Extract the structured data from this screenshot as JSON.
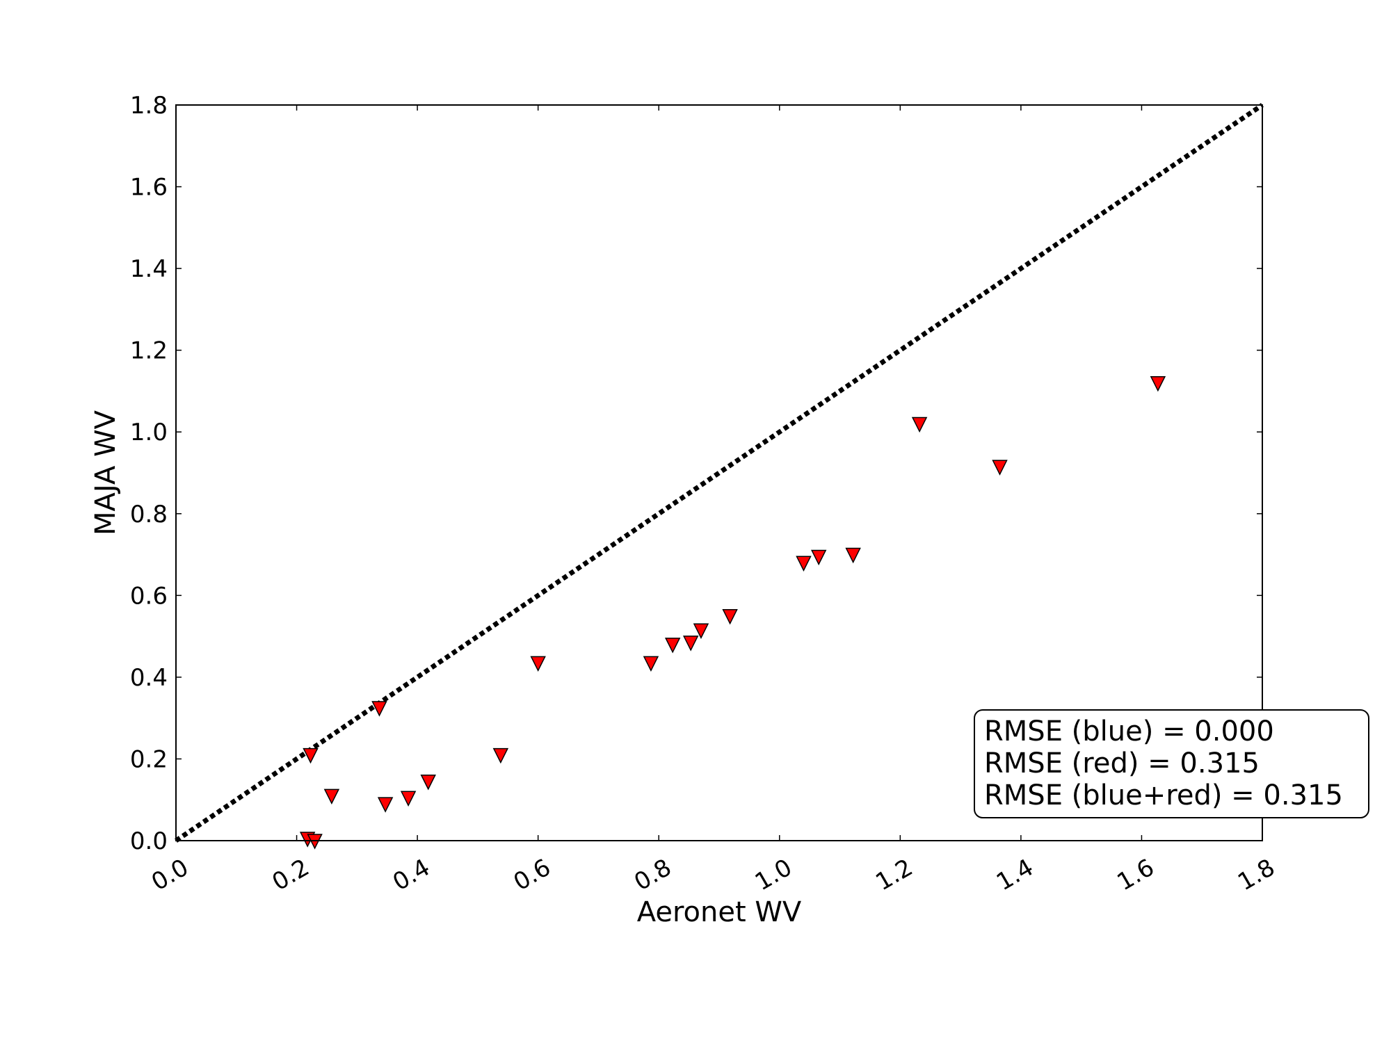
{
  "chart_data": {
    "type": "scatter",
    "xlabel": "Aeronet WV",
    "ylabel": "MAJA WV",
    "xlim": [
      0.0,
      1.8
    ],
    "ylim": [
      0.0,
      1.8
    ],
    "xticks": [
      "0.0",
      "0.2",
      "0.4",
      "0.6",
      "0.8",
      "1.0",
      "1.2",
      "1.4",
      "1.6",
      "1.8"
    ],
    "yticks": [
      "0.0",
      "0.2",
      "0.4",
      "0.6",
      "0.8",
      "1.0",
      "1.2",
      "1.4",
      "1.6",
      "1.8"
    ],
    "grid": false,
    "reference_line": {
      "style": "dotted",
      "color": "#000000",
      "from": [
        0.0,
        0.0
      ],
      "to": [
        1.8,
        1.8
      ]
    },
    "series": [
      {
        "marker": "triangle-down",
        "color": "#ff0000",
        "points": [
          [
            0.218,
            0.005
          ],
          [
            0.223,
            0.21
          ],
          [
            0.23,
            0.0
          ],
          [
            0.258,
            0.11
          ],
          [
            0.337,
            0.325
          ],
          [
            0.347,
            0.09
          ],
          [
            0.385,
            0.105
          ],
          [
            0.418,
            0.145
          ],
          [
            0.538,
            0.21
          ],
          [
            0.6,
            0.435
          ],
          [
            0.787,
            0.435
          ],
          [
            0.823,
            0.48
          ],
          [
            0.853,
            0.485
          ],
          [
            0.87,
            0.515
          ],
          [
            0.918,
            0.55
          ],
          [
            1.04,
            0.68
          ],
          [
            1.065,
            0.695
          ],
          [
            1.122,
            0.7
          ],
          [
            1.232,
            1.02
          ],
          [
            1.365,
            0.915
          ],
          [
            1.627,
            1.12
          ]
        ]
      }
    ],
    "annotation": {
      "placement": "lower-right",
      "lines": [
        "RMSE (blue) = 0.000",
        "RMSE (red) = 0.315",
        "RMSE (blue+red) = 0.315"
      ]
    }
  }
}
